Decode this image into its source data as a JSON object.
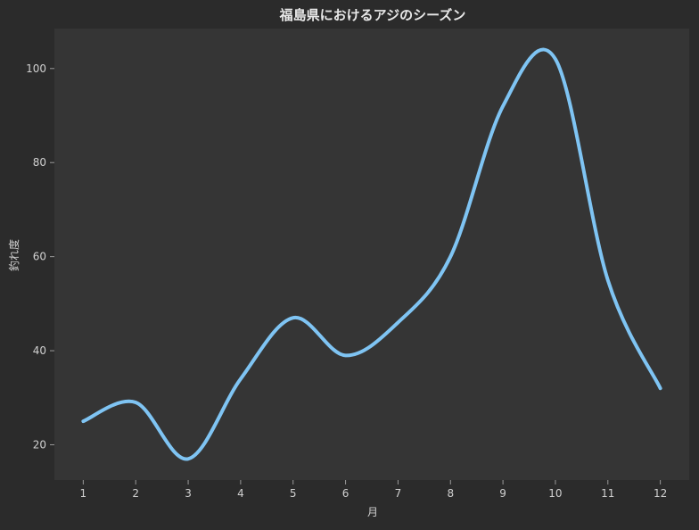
{
  "chart_data": {
    "type": "line",
    "title": "福島県におけるアジのシーズン",
    "xlabel": "月",
    "ylabel": "釣れ度",
    "x": [
      1,
      2,
      3,
      4,
      5,
      6,
      7,
      8,
      9,
      10,
      11,
      12
    ],
    "series": [
      {
        "values": [
          25,
          29,
          17,
          34,
          47,
          39,
          46,
          60,
          92,
          102,
          55,
          32
        ]
      }
    ],
    "xlim": [
      0.45,
      12.55
    ],
    "ylim": [
      12.5,
      108.5
    ],
    "xticks": [
      "1",
      "2",
      "3",
      "4",
      "5",
      "6",
      "7",
      "8",
      "9",
      "10",
      "11",
      "12"
    ],
    "yticks": [
      "20",
      "40",
      "60",
      "80",
      "100"
    ],
    "grid": false,
    "legend": "none",
    "colors": {
      "background": "#2b2b2b",
      "plot_background": "#353535",
      "line": "#7fc4f3",
      "text": "#e8e8e8",
      "tick_text": "#d0d0d0",
      "tick_line": "#9a9a9a"
    }
  }
}
